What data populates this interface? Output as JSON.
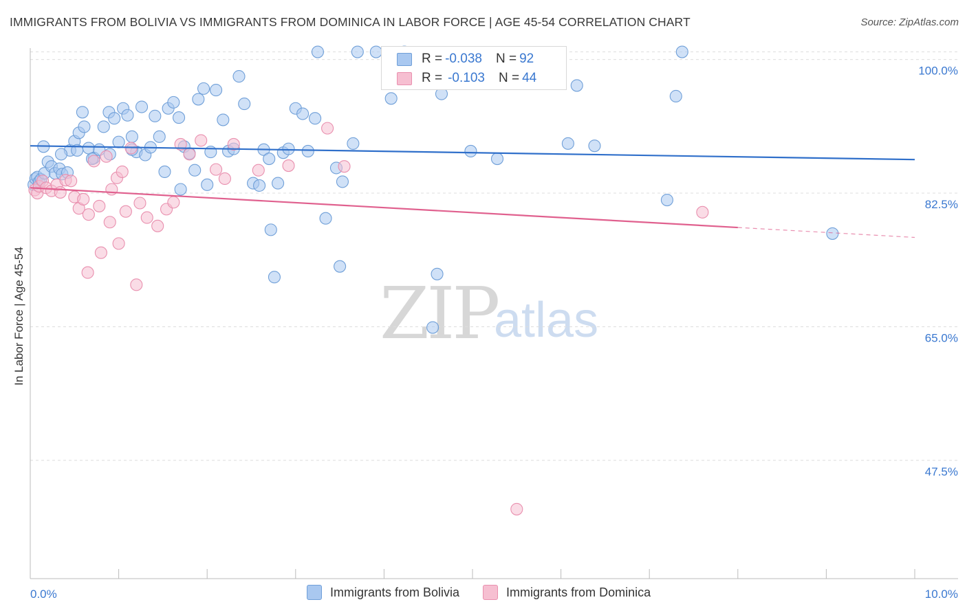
{
  "title": "IMMIGRANTS FROM BOLIVIA VS IMMIGRANTS FROM DOMINICA IN LABOR FORCE | AGE 45-54 CORRELATION CHART",
  "source": "Source: ZipAtlas.com",
  "watermark": {
    "zip": "ZIP",
    "atlas": "atlas"
  },
  "legend_top": {
    "rows": [
      {
        "r_label": "R = ",
        "r_value": "-0.038",
        "n_label": "N = ",
        "n_value": "92"
      },
      {
        "r_label": "R = ",
        "r_value": "-0.103",
        "n_label": "N = ",
        "n_value": "44"
      }
    ]
  },
  "legend_bottom": [
    "Immigrants from Bolivia",
    "Immigrants from Dominica"
  ],
  "colors": {
    "bolivia_fill": "#a9c8f0",
    "bolivia_stroke": "#6f9fd8",
    "bolivia_line": "#2f6fca",
    "dominica_fill": "#f6bfd1",
    "dominica_stroke": "#e98fae",
    "dominica_line": "#e0608e",
    "tick_label": "#3a78d0",
    "grid": "#dddddd"
  },
  "chart_data": {
    "type": "scatter",
    "title": "IMMIGRANTS FROM BOLIVIA VS IMMIGRANTS FROM DOMINICA IN LABOR FORCE | AGE 45-54 CORRELATION CHART",
    "xlabel": "",
    "ylabel": "In Labor Force | Age 45-54",
    "xlim": [
      0,
      10
    ],
    "ylim": [
      32,
      101.5
    ],
    "x_tick_labels": [
      "0.0%",
      "10.0%"
    ],
    "y_ticks": [
      47.5,
      65.0,
      82.5,
      100.0
    ],
    "y_tick_labels": [
      "47.5%",
      "65.0%",
      "82.5%",
      "100.0%"
    ],
    "series": [
      {
        "name": "Immigrants from Bolivia",
        "r": -0.038,
        "n": 92,
        "trend": {
          "x": [
            0,
            10
          ],
          "y": [
            88.7,
            86.9
          ],
          "dashed_from": null
        },
        "points": [
          [
            0.04,
            83.6
          ],
          [
            0.06,
            84.4
          ],
          [
            0.08,
            84.6
          ],
          [
            0.1,
            84.0
          ],
          [
            0.12,
            84.3
          ],
          [
            0.16,
            85.1
          ],
          [
            0.2,
            86.6
          ],
          [
            0.24,
            86.0
          ],
          [
            0.28,
            85.1
          ],
          [
            0.33,
            85.7
          ],
          [
            0.36,
            85.0
          ],
          [
            0.42,
            85.2
          ],
          [
            0.45,
            88.1
          ],
          [
            0.5,
            89.3
          ],
          [
            0.55,
            90.4
          ],
          [
            0.61,
            91.2
          ],
          [
            0.66,
            88.4
          ],
          [
            0.72,
            87.1
          ],
          [
            0.78,
            88.2
          ],
          [
            0.83,
            91.2
          ],
          [
            0.89,
            93.1
          ],
          [
            0.95,
            92.3
          ],
          [
            1.0,
            89.2
          ],
          [
            1.05,
            93.6
          ],
          [
            1.1,
            92.7
          ],
          [
            1.15,
            89.9
          ],
          [
            1.2,
            87.9
          ],
          [
            1.26,
            93.8
          ],
          [
            1.3,
            87.5
          ],
          [
            1.36,
            88.5
          ],
          [
            1.41,
            92.6
          ],
          [
            1.46,
            89.9
          ],
          [
            1.52,
            85.3
          ],
          [
            1.56,
            93.6
          ],
          [
            1.62,
            94.4
          ],
          [
            1.68,
            92.4
          ],
          [
            1.74,
            88.6
          ],
          [
            1.8,
            87.7
          ],
          [
            1.86,
            85.5
          ],
          [
            1.9,
            94.8
          ],
          [
            1.96,
            96.2
          ],
          [
            2.04,
            87.9
          ],
          [
            2.1,
            96.0
          ],
          [
            2.18,
            92.1
          ],
          [
            2.24,
            88.0
          ],
          [
            2.3,
            88.3
          ],
          [
            2.36,
            97.8
          ],
          [
            2.42,
            94.2
          ],
          [
            2.52,
            83.8
          ],
          [
            2.59,
            83.5
          ],
          [
            2.64,
            88.2
          ],
          [
            2.72,
            77.7
          ],
          [
            2.76,
            71.5
          ],
          [
            2.8,
            83.8
          ],
          [
            2.86,
            87.8
          ],
          [
            2.92,
            88.3
          ],
          [
            3.0,
            93.6
          ],
          [
            3.08,
            92.9
          ],
          [
            3.14,
            88.0
          ],
          [
            3.22,
            92.3
          ],
          [
            3.34,
            79.2
          ],
          [
            3.46,
            85.8
          ],
          [
            3.53,
            84.0
          ],
          [
            3.5,
            72.9
          ],
          [
            3.65,
            89.0
          ],
          [
            4.08,
            94.9
          ],
          [
            4.55,
            64.9
          ],
          [
            4.6,
            71.9
          ],
          [
            4.65,
            95.5
          ],
          [
            4.98,
            88.0
          ],
          [
            5.28,
            87.0
          ],
          [
            6.08,
            89.0
          ],
          [
            6.18,
            96.6
          ],
          [
            6.38,
            88.7
          ],
          [
            7.2,
            81.6
          ],
          [
            7.3,
            95.2
          ],
          [
            9.07,
            77.2
          ],
          [
            0.15,
            88.6
          ],
          [
            0.35,
            87.6
          ],
          [
            0.53,
            88.1
          ],
          [
            0.7,
            87.0
          ],
          [
            0.9,
            87.6
          ],
          [
            1.7,
            83.0
          ],
          [
            2.0,
            83.6
          ],
          [
            2.7,
            87.0
          ],
          [
            3.7,
            101.0
          ],
          [
            4.23,
            101.0
          ],
          [
            3.25,
            101.0
          ],
          [
            3.91,
            101.0
          ],
          [
            7.37,
            101.0
          ],
          [
            1.15,
            88.2
          ],
          [
            0.59,
            93.1
          ]
        ]
      },
      {
        "name": "Immigrants from Dominica",
        "r": -0.103,
        "n": 44,
        "trend": {
          "x": [
            0,
            10
          ],
          "y": [
            83.2,
            76.7
          ],
          "dashed_from": 8.0
        },
        "points": [
          [
            0.05,
            82.9
          ],
          [
            0.08,
            82.5
          ],
          [
            0.1,
            83.4
          ],
          [
            0.14,
            84.1
          ],
          [
            0.18,
            83.2
          ],
          [
            0.24,
            82.8
          ],
          [
            0.3,
            83.6
          ],
          [
            0.34,
            82.6
          ],
          [
            0.4,
            84.2
          ],
          [
            0.46,
            84.1
          ],
          [
            0.5,
            82.0
          ],
          [
            0.55,
            80.5
          ],
          [
            0.6,
            81.7
          ],
          [
            0.66,
            79.7
          ],
          [
            0.72,
            86.7
          ],
          [
            0.78,
            80.8
          ],
          [
            0.86,
            87.3
          ],
          [
            0.92,
            83.0
          ],
          [
            0.98,
            84.5
          ],
          [
            1.04,
            85.3
          ],
          [
            1.08,
            80.1
          ],
          [
            1.14,
            88.4
          ],
          [
            1.24,
            81.2
          ],
          [
            1.32,
            79.3
          ],
          [
            1.44,
            78.2
          ],
          [
            1.54,
            80.4
          ],
          [
            1.62,
            81.3
          ],
          [
            1.7,
            88.9
          ],
          [
            1.8,
            87.6
          ],
          [
            1.93,
            89.4
          ],
          [
            2.1,
            85.6
          ],
          [
            2.2,
            84.4
          ],
          [
            2.3,
            88.9
          ],
          [
            2.58,
            85.5
          ],
          [
            2.92,
            86.1
          ],
          [
            3.36,
            91.0
          ],
          [
            3.55,
            86.0
          ],
          [
            7.6,
            80.0
          ],
          [
            0.65,
            72.1
          ],
          [
            0.8,
            74.7
          ],
          [
            0.9,
            78.7
          ],
          [
            1.0,
            75.9
          ],
          [
            1.2,
            70.5
          ],
          [
            5.5,
            41.1
          ]
        ]
      }
    ]
  }
}
